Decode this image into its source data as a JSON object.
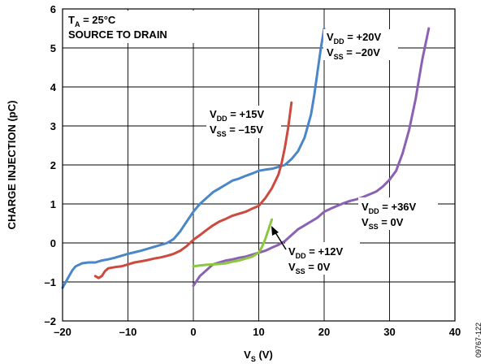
{
  "chart_data": {
    "type": "line",
    "xlabel_main": "V",
    "xlabel_sub": "S",
    "xlabel_unit": " (V)",
    "ylabel": "CHARGE INJECTION (pC)",
    "xlim": [
      -20,
      40
    ],
    "ylim": [
      -2,
      6
    ],
    "xticks": [
      "–20",
      "–10",
      "0",
      "10",
      "20",
      "30",
      "40"
    ],
    "yticks": [
      "–2",
      "–1",
      "0",
      "1",
      "2",
      "3",
      "4",
      "5",
      "6"
    ],
    "grid": true,
    "annotations": {
      "conditions": {
        "line1_main": "T",
        "line1_sub": "A",
        "line1_rest": " = 25°C",
        "line2": "SOURCE TO DRAIN"
      },
      "vdd20": {
        "vdd_main": "V",
        "vdd_sub": "DD",
        "vdd_rest": " = +20V",
        "vss_main": "V",
        "vss_sub": "SS",
        "vss_rest": " = –20V"
      },
      "vdd15": {
        "vdd_main": "V",
        "vdd_sub": "DD",
        "vdd_rest": " = +15V",
        "vss_main": "V",
        "vss_sub": "SS",
        "vss_rest": " = –15V"
      },
      "vdd36": {
        "vdd_main": "V",
        "vdd_sub": "DD",
        "vdd_rest": " = +36V",
        "vss_main": "V",
        "vss_sub": "SS",
        "vss_rest": " = 0V"
      },
      "vdd12": {
        "vdd_main": "V",
        "vdd_sub": "DD",
        "vdd_rest": " = +12V",
        "vss_main": "V",
        "vss_sub": "SS",
        "vss_rest": " = 0V"
      }
    },
    "figure_code": "09767-122",
    "series": [
      {
        "color": "#4a86c8",
        "x": [
          -20,
          -19.5,
          -19,
          -18.5,
          -18,
          -17,
          -16,
          -15,
          -14,
          -13,
          -12,
          -11,
          -10,
          -9,
          -8,
          -7,
          -6,
          -5,
          -4,
          -3,
          -2,
          -1,
          0,
          1,
          2,
          3,
          4,
          5,
          6,
          7,
          8,
          9,
          10,
          11,
          12,
          13,
          14,
          15,
          16,
          17,
          18,
          18.5,
          19,
          19.5,
          20
        ],
        "y": [
          -1.15,
          -1.0,
          -0.85,
          -0.7,
          -0.6,
          -0.52,
          -0.5,
          -0.5,
          -0.45,
          -0.42,
          -0.38,
          -0.33,
          -0.28,
          -0.24,
          -0.2,
          -0.15,
          -0.1,
          -0.05,
          0.0,
          0.1,
          0.3,
          0.55,
          0.8,
          1.0,
          1.15,
          1.3,
          1.4,
          1.5,
          1.6,
          1.65,
          1.72,
          1.78,
          1.85,
          1.88,
          1.9,
          1.95,
          2.0,
          2.15,
          2.35,
          2.7,
          3.3,
          3.8,
          4.4,
          5.0,
          5.5
        ]
      },
      {
        "color": "#cc4a3f",
        "x": [
          -15,
          -14.5,
          -14,
          -13.5,
          -13,
          -12,
          -11,
          -10,
          -9,
          -8,
          -7,
          -6,
          -5,
          -4,
          -3,
          -2,
          -1,
          0,
          1,
          2,
          3,
          4,
          5,
          6,
          7,
          8,
          9,
          10,
          11,
          12,
          13,
          13.5,
          14,
          14.5,
          15
        ],
        "y": [
          -0.85,
          -0.9,
          -0.85,
          -0.72,
          -0.65,
          -0.62,
          -0.6,
          -0.55,
          -0.5,
          -0.47,
          -0.44,
          -0.4,
          -0.37,
          -0.33,
          -0.28,
          -0.2,
          -0.08,
          0.08,
          0.2,
          0.33,
          0.45,
          0.55,
          0.62,
          0.7,
          0.75,
          0.8,
          0.88,
          0.95,
          1.15,
          1.4,
          1.75,
          2.05,
          2.45,
          2.95,
          3.6
        ]
      },
      {
        "color": "#8b62b3",
        "x": [
          0,
          1,
          2,
          3,
          4,
          5,
          6,
          7,
          8,
          9,
          10,
          11,
          12,
          13,
          14,
          15,
          16,
          17,
          18,
          19,
          20,
          21,
          22,
          23,
          24,
          25,
          26,
          27,
          28,
          29,
          30,
          31,
          32,
          33,
          34,
          34.5,
          35,
          35.5,
          36
        ],
        "y": [
          -1.1,
          -0.85,
          -0.7,
          -0.55,
          -0.5,
          -0.45,
          -0.42,
          -0.38,
          -0.35,
          -0.3,
          -0.25,
          -0.2,
          -0.12,
          -0.05,
          0.05,
          0.2,
          0.35,
          0.45,
          0.55,
          0.65,
          0.8,
          0.88,
          0.95,
          1.02,
          1.08,
          1.12,
          1.18,
          1.25,
          1.32,
          1.45,
          1.62,
          1.85,
          2.3,
          2.9,
          3.7,
          4.2,
          4.7,
          5.1,
          5.5
        ]
      },
      {
        "color": "#8dc63f",
        "x": [
          0,
          1,
          2,
          3,
          4,
          5,
          6,
          7,
          8,
          9,
          10,
          10.5,
          11,
          11.5,
          12
        ],
        "y": [
          -0.6,
          -0.58,
          -0.56,
          -0.55,
          -0.54,
          -0.52,
          -0.48,
          -0.45,
          -0.4,
          -0.35,
          -0.25,
          -0.1,
          0.1,
          0.35,
          0.6
        ]
      }
    ]
  }
}
